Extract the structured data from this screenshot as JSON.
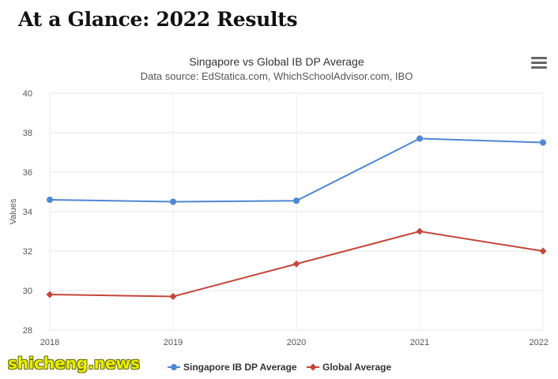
{
  "page": {
    "heading": "At a Glance: 2022 Results",
    "watermark": "shicheng.news"
  },
  "chart_data": {
    "type": "line",
    "title": "Singapore vs Global IB DP Average",
    "subtitle": "Data source: EdStatica.com, WhichSchoolAdvisor.com, IBO",
    "xlabel": "",
    "ylabel": "Values",
    "categories": [
      "2018",
      "2019",
      "2020",
      "2021",
      "2022"
    ],
    "ylim": [
      28,
      40
    ],
    "yticks": [
      28,
      30,
      32,
      34,
      36,
      38,
      40
    ],
    "grid": true,
    "legend_position": "bottom-center",
    "series": [
      {
        "name": "Singapore IB DP Average",
        "values": [
          34.6,
          34.5,
          34.55,
          37.7,
          37.5
        ],
        "color": "#4f87d4",
        "marker": "circle"
      },
      {
        "name": "Global Average",
        "values": [
          29.8,
          29.7,
          31.35,
          33.0,
          32.0
        ],
        "color": "#c4463a",
        "marker": "diamond"
      }
    ],
    "menu_icon": "hamburger-menu-icon"
  }
}
